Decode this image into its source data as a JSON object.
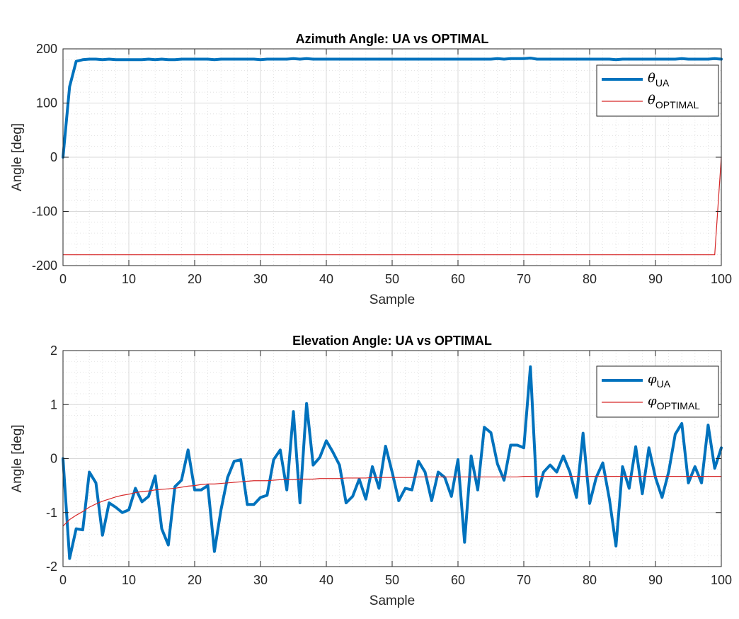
{
  "chart_data": [
    {
      "type": "line",
      "title": "Azimuth Angle: UA vs OPTIMAL",
      "xlabel": "Sample",
      "ylabel": "Angle [deg]",
      "xlim": [
        0,
        100
      ],
      "ylim": [
        -200,
        200
      ],
      "xticks": [
        "0",
        "10",
        "20",
        "30",
        "40",
        "50",
        "60",
        "70",
        "80",
        "90",
        "100"
      ],
      "yticks": [
        "200",
        "100",
        "0",
        "-100",
        "-200"
      ],
      "grid": true,
      "legend_position": "top-right",
      "x": [
        0,
        1,
        2,
        3,
        4,
        5,
        6,
        7,
        8,
        9,
        10,
        11,
        12,
        13,
        14,
        15,
        16,
        17,
        18,
        19,
        20,
        21,
        22,
        23,
        24,
        25,
        26,
        27,
        28,
        29,
        30,
        31,
        32,
        33,
        34,
        35,
        36,
        37,
        38,
        39,
        40,
        41,
        42,
        43,
        44,
        45,
        46,
        47,
        48,
        49,
        50,
        51,
        52,
        53,
        54,
        55,
        56,
        57,
        58,
        59,
        60,
        61,
        62,
        63,
        64,
        65,
        66,
        67,
        68,
        69,
        70,
        71,
        72,
        73,
        74,
        75,
        76,
        77,
        78,
        79,
        80,
        81,
        82,
        83,
        84,
        85,
        86,
        87,
        88,
        89,
        90,
        91,
        92,
        93,
        94,
        95,
        96,
        97,
        98,
        99,
        100
      ],
      "series": [
        {
          "name": "θ",
          "subscript": "UA",
          "color": "#0072BD",
          "width": "thick",
          "values": [
            0,
            130,
            177,
            180,
            181,
            181,
            180,
            181,
            180,
            180,
            180,
            180,
            180,
            181,
            180,
            181,
            180,
            180,
            181,
            181,
            181,
            181,
            181,
            180,
            181,
            181,
            181,
            181,
            181,
            181,
            180,
            181,
            181,
            181,
            181,
            182,
            181,
            182,
            181,
            181,
            181,
            181,
            181,
            181,
            181,
            181,
            181,
            181,
            181,
            181,
            181,
            181,
            181,
            181,
            181,
            181,
            181,
            181,
            181,
            181,
            181,
            181,
            181,
            181,
            181,
            181,
            182,
            181,
            182,
            182,
            182,
            183,
            181,
            181,
            181,
            181,
            181,
            181,
            181,
            181,
            181,
            181,
            181,
            181,
            180,
            181,
            181,
            181,
            181,
            181,
            181,
            181,
            181,
            181,
            182,
            181,
            181,
            181,
            181,
            182,
            181
          ]
        },
        {
          "name": "θ",
          "subscript": "OPTIMAL",
          "color": "#D62728",
          "width": "thin",
          "values": [
            -180,
            -180,
            -180,
            -180,
            -180,
            -180,
            -180,
            -180,
            -180,
            -180,
            -180,
            -180,
            -180,
            -180,
            -180,
            -180,
            -180,
            -180,
            -180,
            -180,
            -180,
            -180,
            -180,
            -180,
            -180,
            -180,
            -180,
            -180,
            -180,
            -180,
            -180,
            -180,
            -180,
            -180,
            -180,
            -180,
            -180,
            -180,
            -180,
            -180,
            -180,
            -180,
            -180,
            -180,
            -180,
            -180,
            -180,
            -180,
            -180,
            -180,
            -180,
            -180,
            -180,
            -180,
            -180,
            -180,
            -180,
            -180,
            -180,
            -180,
            -180,
            -180,
            -180,
            -180,
            -180,
            -180,
            -180,
            -180,
            -180,
            -180,
            -180,
            -180,
            -180,
            -180,
            -180,
            -180,
            -180,
            -180,
            -180,
            -180,
            -180,
            -180,
            -180,
            -180,
            -180,
            -180,
            -180,
            -180,
            -180,
            -180,
            -180,
            -180,
            -180,
            -180,
            -180,
            -180,
            -180,
            -180,
            -180,
            -180,
            0
          ]
        }
      ]
    },
    {
      "type": "line",
      "title": "Elevation Angle: UA vs OPTIMAL",
      "xlabel": "Sample",
      "ylabel": "Angle [deg]",
      "xlim": [
        0,
        100
      ],
      "ylim": [
        -2,
        2
      ],
      "xticks": [
        "0",
        "10",
        "20",
        "30",
        "40",
        "50",
        "60",
        "70",
        "80",
        "90",
        "100"
      ],
      "yticks": [
        "2",
        "1",
        "0",
        "-1",
        "-2"
      ],
      "grid": true,
      "legend_position": "top-right",
      "x": [
        0,
        1,
        2,
        3,
        4,
        5,
        6,
        7,
        8,
        9,
        10,
        11,
        12,
        13,
        14,
        15,
        16,
        17,
        18,
        19,
        20,
        21,
        22,
        23,
        24,
        25,
        26,
        27,
        28,
        29,
        30,
        31,
        32,
        33,
        34,
        35,
        36,
        37,
        38,
        39,
        40,
        41,
        42,
        43,
        44,
        45,
        46,
        47,
        48,
        49,
        50,
        51,
        52,
        53,
        54,
        55,
        56,
        57,
        58,
        59,
        60,
        61,
        62,
        63,
        64,
        65,
        66,
        67,
        68,
        69,
        70,
        71,
        72,
        73,
        74,
        75,
        76,
        77,
        78,
        79,
        80,
        81,
        82,
        83,
        84,
        85,
        86,
        87,
        88,
        89,
        90,
        91,
        92,
        93,
        94,
        95,
        96,
        97,
        98,
        99,
        100
      ],
      "series": [
        {
          "name": "φ",
          "subscript": "UA",
          "color": "#0072BD",
          "width": "thick",
          "values": [
            0,
            -1.85,
            -1.3,
            -1.32,
            -0.25,
            -0.45,
            -1.42,
            -0.82,
            -0.9,
            -1.0,
            -0.95,
            -0.55,
            -0.8,
            -0.7,
            -0.32,
            -1.3,
            -1.6,
            -0.52,
            -0.4,
            0.16,
            -0.58,
            -0.58,
            -0.5,
            -1.72,
            -0.95,
            -0.35,
            -0.05,
            -0.02,
            -0.85,
            -0.85,
            -0.72,
            -0.68,
            -0.02,
            0.16,
            -0.58,
            0.87,
            -0.82,
            1.02,
            -0.12,
            0.02,
            0.33,
            0.12,
            -0.12,
            -0.82,
            -0.7,
            -0.38,
            -0.75,
            -0.15,
            -0.55,
            0.23,
            -0.25,
            -0.78,
            -0.55,
            -0.58,
            -0.05,
            -0.25,
            -0.78,
            -0.25,
            -0.35,
            -0.7,
            -0.02,
            -1.55,
            0.05,
            -0.58,
            0.58,
            0.48,
            -0.1,
            -0.4,
            0.25,
            0.25,
            0.2,
            1.7,
            -0.7,
            -0.25,
            -0.12,
            -0.25,
            0.05,
            -0.25,
            -0.72,
            0.47,
            -0.83,
            -0.35,
            -0.08,
            -0.75,
            -1.62,
            -0.15,
            -0.55,
            0.22,
            -0.65,
            0.2,
            -0.35,
            -0.72,
            -0.25,
            0.45,
            0.65,
            -0.45,
            -0.15,
            -0.45,
            0.62,
            -0.18,
            0.2
          ]
        },
        {
          "name": "φ",
          "subscript": "OPTIMAL",
          "color": "#D62728",
          "width": "thin",
          "values": [
            -1.25,
            -1.13,
            -1.05,
            -0.98,
            -0.9,
            -0.84,
            -0.79,
            -0.75,
            -0.71,
            -0.68,
            -0.66,
            -0.63,
            -0.61,
            -0.6,
            -0.58,
            -0.57,
            -0.56,
            -0.55,
            -0.53,
            -0.51,
            -0.5,
            -0.48,
            -0.47,
            -0.47,
            -0.46,
            -0.45,
            -0.44,
            -0.43,
            -0.42,
            -0.41,
            -0.41,
            -0.41,
            -0.4,
            -0.39,
            -0.39,
            -0.39,
            -0.38,
            -0.38,
            -0.38,
            -0.37,
            -0.37,
            -0.37,
            -0.37,
            -0.36,
            -0.36,
            -0.36,
            -0.36,
            -0.35,
            -0.35,
            -0.35,
            -0.35,
            -0.35,
            -0.35,
            -0.35,
            -0.34,
            -0.34,
            -0.34,
            -0.34,
            -0.34,
            -0.34,
            -0.34,
            -0.34,
            -0.34,
            -0.34,
            -0.34,
            -0.34,
            -0.34,
            -0.34,
            -0.34,
            -0.34,
            -0.33,
            -0.33,
            -0.33,
            -0.33,
            -0.33,
            -0.33,
            -0.33,
            -0.33,
            -0.33,
            -0.33,
            -0.33,
            -0.33,
            -0.33,
            -0.33,
            -0.33,
            -0.33,
            -0.33,
            -0.33,
            -0.33,
            -0.33,
            -0.33,
            -0.33,
            -0.33,
            -0.33,
            -0.33,
            -0.33,
            -0.33,
            -0.33,
            -0.33,
            -0.33,
            -0.33
          ]
        }
      ]
    }
  ]
}
